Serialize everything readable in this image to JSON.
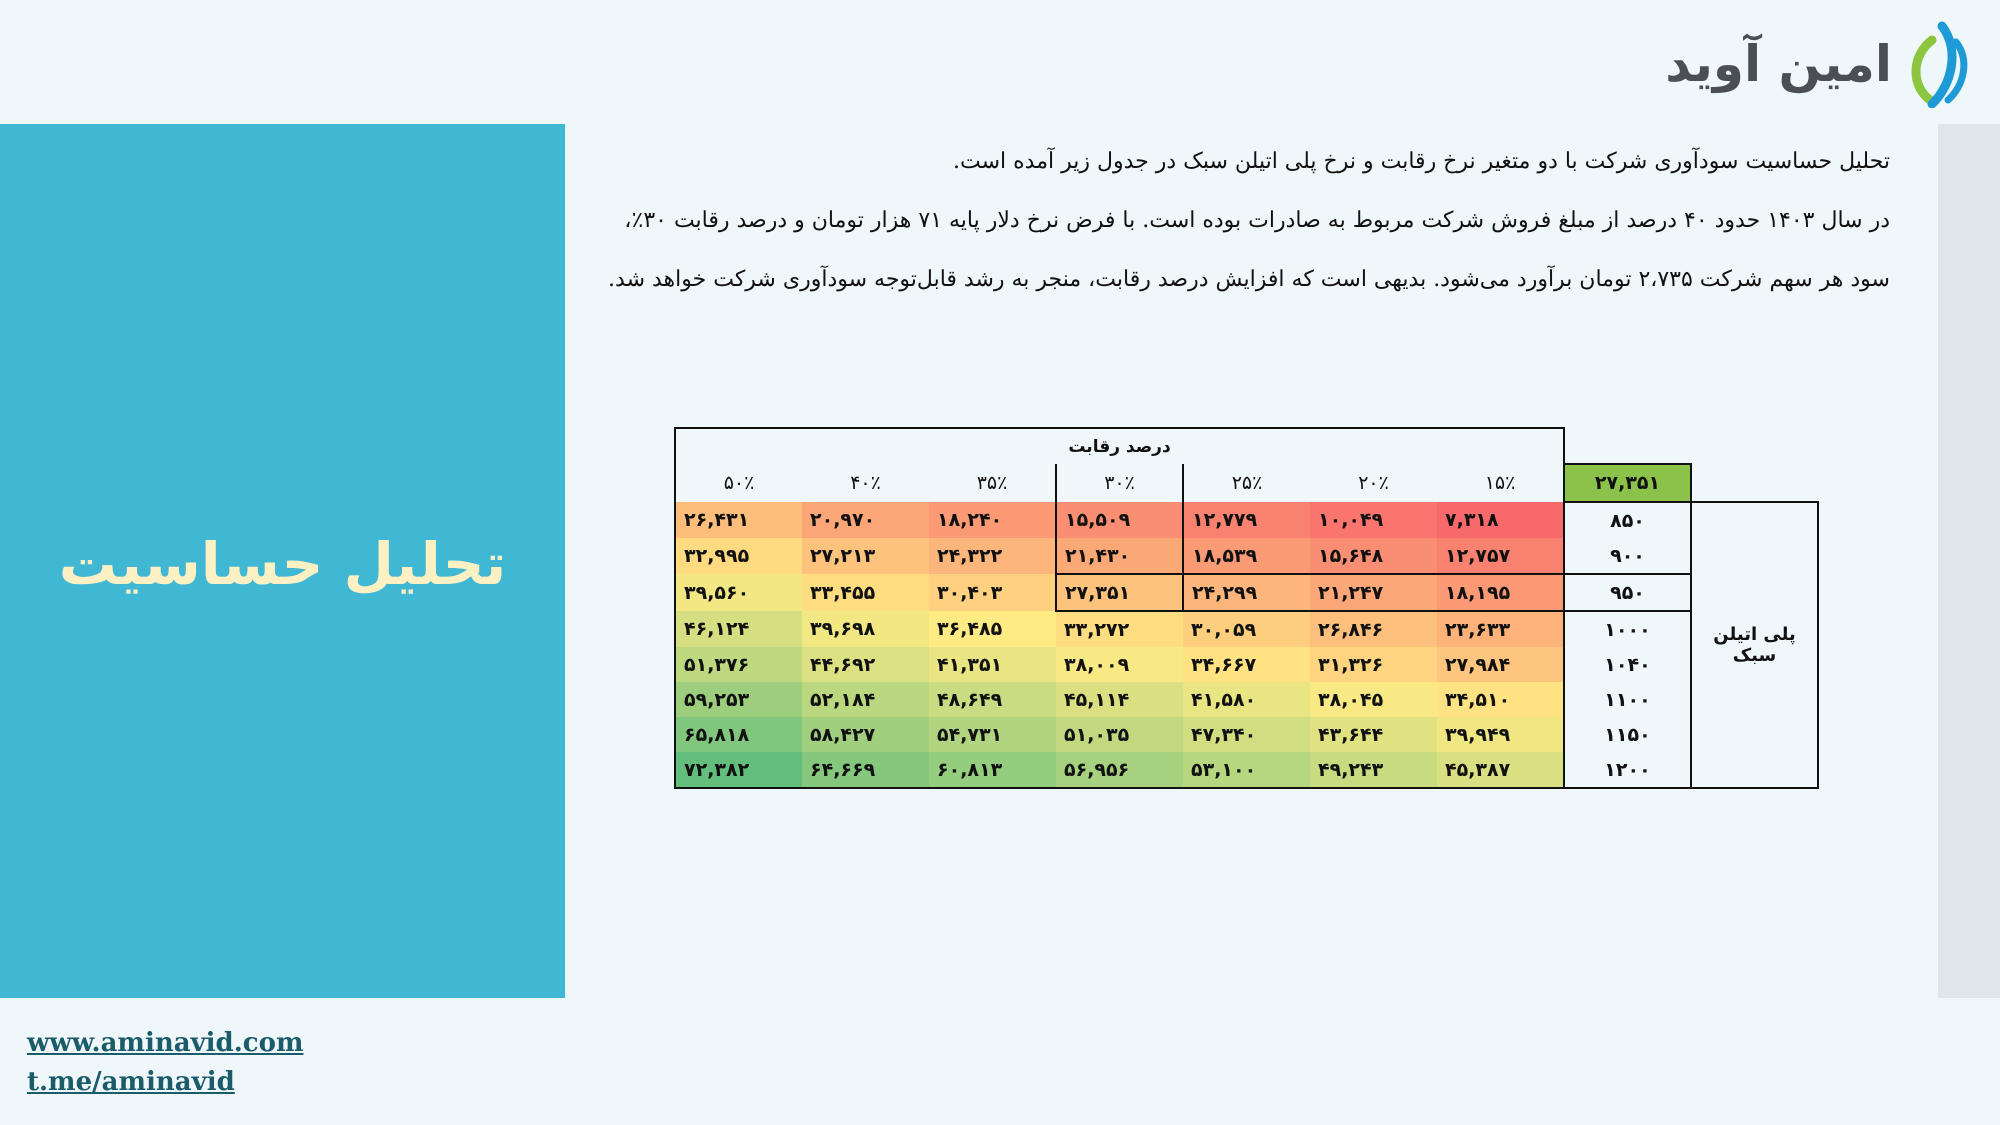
{
  "logo": {
    "text": "امین آوید",
    "colors": {
      "green": "#8cc63f",
      "blue": "#1e9ad6"
    }
  },
  "panel": {
    "title": "تحلیل حساسیت",
    "background": "#41b8d3",
    "title_color": "#fdf1c4"
  },
  "paragraph": {
    "line1": "تحلیل حساسیت سودآوری شرکت با دو متغیر نرخ رقابت و نرخ پلی اتیلن سبک در جدول زیر آمده است.",
    "line2": "در سال ۱۴۰۳ حدود ۴۰ درصد از مبلغ فروش شرکت مربوط به صادرات بوده است. با فرض نرخ دلار پایه ۷۱ هزار تومان و درصد رقابت ۳۰٪،",
    "line3": "سود هر سهم شرکت ۲،۷۳۵ تومان برآورد می‌شود. بدیهی است که افزایش درصد رقابت، منجر به رشد قابل‌توجه سودآوری شرکت خواهد شد."
  },
  "table": {
    "column_group_label": "درصد رقابت",
    "row_group_label": "پلی اتیلن سبک",
    "base_value": "۲۷,۳۵۱",
    "columns": [
      "۱۵٪",
      "۲۰٪",
      "۲۵٪",
      "۳۰٪",
      "۳۵٪",
      "۴۰٪",
      "۵۰٪"
    ],
    "rows": [
      {
        "label": "۸۵۰",
        "values": [
          "۷,۳۱۸",
          "۱۰,۰۴۹",
          "۱۲,۷۷۹",
          "۱۵,۵۰۹",
          "۱۸,۲۴۰",
          "۲۰,۹۷۰",
          "۲۶,۴۳۱"
        ]
      },
      {
        "label": "۹۰۰",
        "values": [
          "۱۲,۷۵۷",
          "۱۵,۶۴۸",
          "۱۸,۵۳۹",
          "۲۱,۴۳۰",
          "۲۴,۳۲۲",
          "۲۷,۲۱۳",
          "۳۲,۹۹۵"
        ]
      },
      {
        "label": "۹۵۰",
        "values": [
          "۱۸,۱۹۵",
          "۲۱,۲۴۷",
          "۲۴,۲۹۹",
          "۲۷,۳۵۱",
          "۳۰,۴۰۳",
          "۳۳,۴۵۵",
          "۳۹,۵۶۰"
        ]
      },
      {
        "label": "۱۰۰۰",
        "values": [
          "۲۳,۶۳۳",
          "۲۶,۸۴۶",
          "۳۰,۰۵۹",
          "۳۳,۲۷۲",
          "۳۶,۴۸۵",
          "۳۹,۶۹۸",
          "۴۶,۱۲۴"
        ]
      },
      {
        "label": "۱۰۴۰",
        "values": [
          "۲۷,۹۸۴",
          "۳۱,۳۲۶",
          "۳۴,۶۶۷",
          "۳۸,۰۰۹",
          "۴۱,۳۵۱",
          "۴۴,۶۹۲",
          "۵۱,۳۷۶"
        ]
      },
      {
        "label": "۱۱۰۰",
        "values": [
          "۳۴,۵۱۰",
          "۳۸,۰۴۵",
          "۴۱,۵۸۰",
          "۴۵,۱۱۴",
          "۴۸,۶۴۹",
          "۵۲,۱۸۴",
          "۵۹,۲۵۳"
        ]
      },
      {
        "label": "۱۱۵۰",
        "values": [
          "۳۹,۹۴۹",
          "۴۳,۶۴۴",
          "۴۷,۳۴۰",
          "۵۱,۰۳۵",
          "۵۴,۷۳۱",
          "۵۸,۴۲۷",
          "۶۵,۸۱۸"
        ]
      },
      {
        "label": "۱۲۰۰",
        "values": [
          "۴۵,۳۸۷",
          "۴۹,۲۴۳",
          "۵۳,۱۰۰",
          "۵۶,۹۵۶",
          "۶۰,۸۱۳",
          "۶۴,۶۶۹",
          "۷۲,۳۸۲"
        ]
      }
    ],
    "color_scale": {
      "low": "#f8696b",
      "mid": "#ffeb84",
      "high": "#63be7b"
    },
    "highlight": {
      "column": "۳۰٪",
      "row": "۹۵۰"
    }
  },
  "footer": {
    "website": "www.aminavid.com",
    "telegram": "t.me/aminavid"
  }
}
